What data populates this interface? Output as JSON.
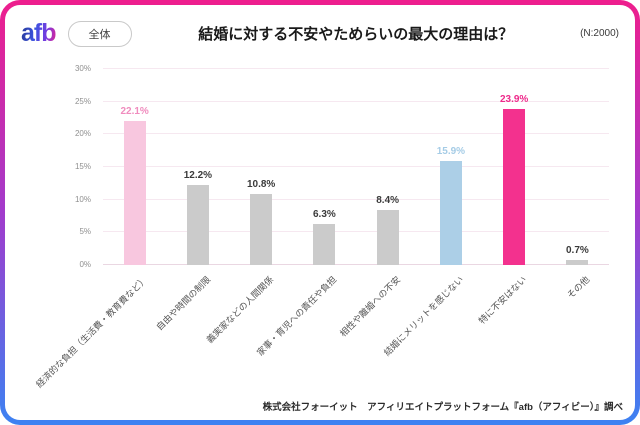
{
  "header": {
    "logo": "afb",
    "filter_label": "全体",
    "title": "結婚に対する不安やためらいの最大の理由は？",
    "sample": "(N:2000)"
  },
  "chart_data": {
    "type": "bar",
    "title": "結婚に対する不安やためらいの最大の理由は？",
    "categories": [
      "経済的な負担（生活費・教育費など）",
      "自由や時間の制限",
      "義実家などの人間関係",
      "家事・育児への責任や負担",
      "相性や離婚への不安",
      "結婚にメリットを感じない",
      "特に不安はない",
      "その他"
    ],
    "values": [
      22.1,
      12.2,
      10.8,
      6.3,
      8.4,
      15.9,
      23.9,
      0.7
    ],
    "value_labels": [
      "22.1%",
      "12.2%",
      "10.8%",
      "6.3%",
      "8.4%",
      "15.9%",
      "23.9%",
      "0.7%"
    ],
    "bar_colors": [
      "#f8c7df",
      "#cbcbcb",
      "#cbcbcb",
      "#cbcbcb",
      "#cbcbcb",
      "#accfe7",
      "#f3318e",
      "#cbcbcb"
    ],
    "label_colors": [
      "#f08cbe",
      "#3a3a3a",
      "#3a3a3a",
      "#3a3a3a",
      "#3a3a3a",
      "#a5cce6",
      "#ee2a8b",
      "#3a3a3a"
    ],
    "yticks": [
      "0%",
      "5%",
      "10%",
      "15%",
      "20%",
      "25%",
      "30%"
    ],
    "ylim": [
      0,
      30
    ],
    "xlabel": "",
    "ylabel": "",
    "grid": true,
    "legend": "none"
  },
  "footer": {
    "source": "株式会社フォーイット　アフィリエイトプラットフォーム『afb（アフィビー）』調べ"
  },
  "colors": {
    "border_gradient_top": "#ee1e8d",
    "border_gradient_bottom": "#3c82f2",
    "accent_magenta": "#f3318e",
    "accent_light_pink": "#f8c7df",
    "accent_light_blue": "#accfe7",
    "bar_gray": "#cbcbcb"
  }
}
